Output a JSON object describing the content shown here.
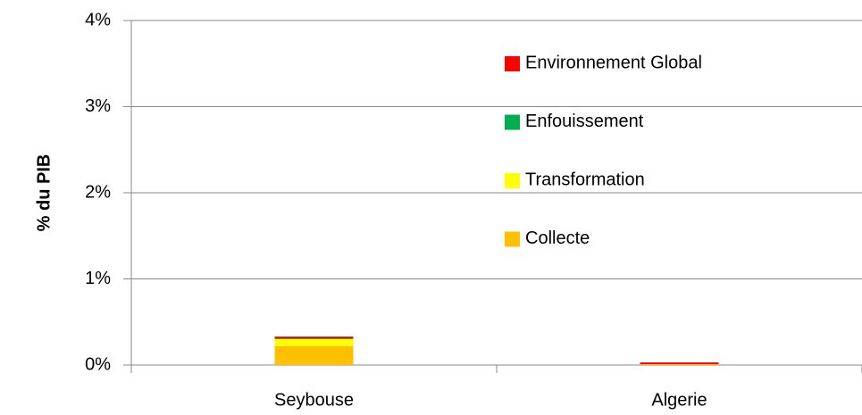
{
  "chart_data": {
    "type": "bar",
    "stacked": true,
    "ylabel": "% du PIB",
    "categories": [
      "Seybouse",
      "Algerie"
    ],
    "series": [
      {
        "name": "Collecte",
        "color": "#ffc000",
        "values": [
          0.22,
          0.01
        ]
      },
      {
        "name": "Transformation",
        "color": "#ffff00",
        "values": [
          0.08,
          0
        ]
      },
      {
        "name": "Enfouissement",
        "color": "#00b050",
        "values": [
          0.01,
          0
        ]
      },
      {
        "name": "Environnement Global",
        "color": "#ff0000",
        "values": [
          0.02,
          0.02
        ]
      }
    ],
    "ylim": [
      0,
      4
    ],
    "yticks": [
      {
        "value": 0,
        "label": "0%"
      },
      {
        "value": 1,
        "label": "1%"
      },
      {
        "value": 2,
        "label": "2%"
      },
      {
        "value": 3,
        "label": "3%"
      },
      {
        "value": 4,
        "label": "4%"
      }
    ],
    "grid": true,
    "legend": "upper right"
  }
}
